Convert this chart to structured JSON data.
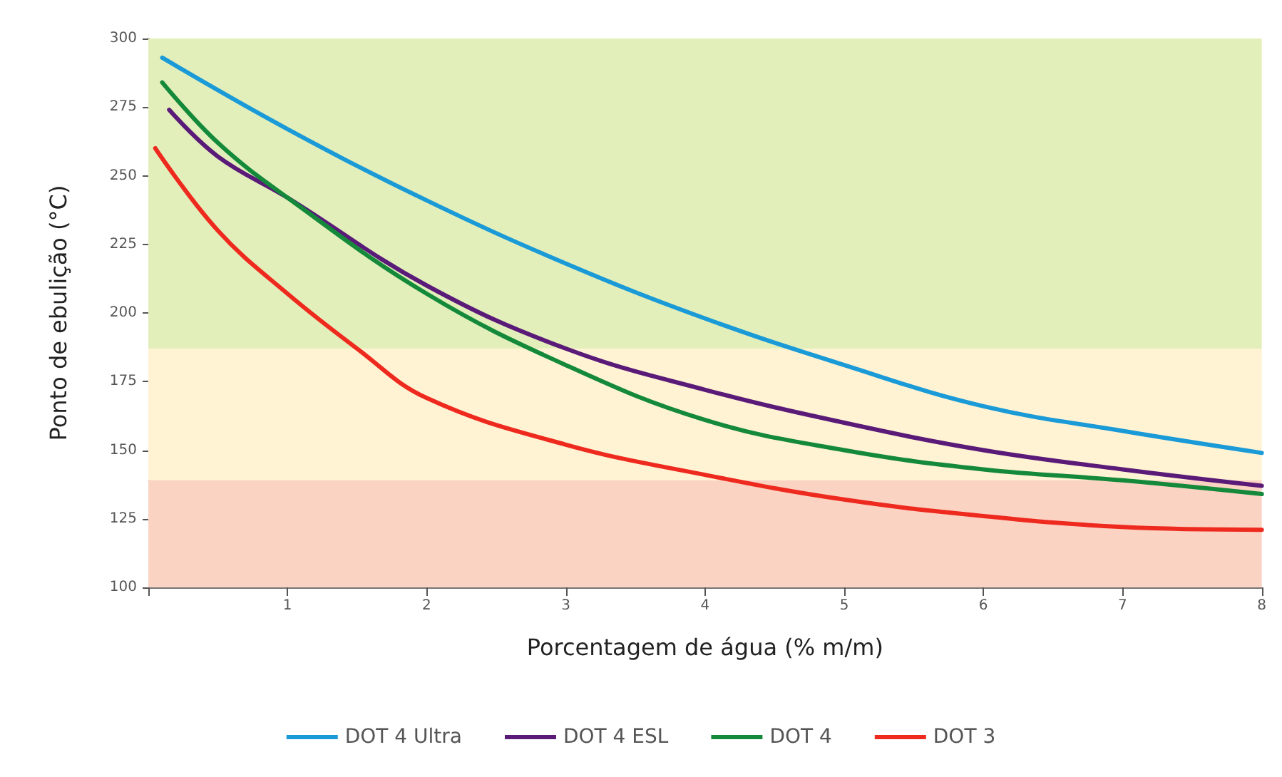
{
  "chart_data": {
    "type": "line",
    "xlabel": "Porcentagem de água (% m/m)",
    "ylabel": "Ponto de ebulição (°C)",
    "xlim": [
      0,
      8
    ],
    "xticks": [
      {
        "value": 0,
        "label": null
      },
      1,
      2,
      3,
      4,
      5,
      6,
      7,
      8
    ],
    "ylim": [
      100,
      300
    ],
    "yticks": [
      100,
      125,
      150,
      175,
      200,
      225,
      250,
      275,
      300
    ],
    "grid": false,
    "legend": "bottom",
    "marker": "none",
    "line_style": "solid",
    "bands": [
      {
        "axis": "y",
        "from": 187,
        "to": 300,
        "color": "#e3efbb"
      },
      {
        "axis": "y",
        "from": 139,
        "to": 187,
        "color": "#fff3d4"
      },
      {
        "axis": "y",
        "from": 100,
        "to": 139,
        "color": "#fbd3c3"
      }
    ],
    "series": [
      {
        "name": "DOT 4 Ultra",
        "color": "#1a9ad6",
        "x": [
          0.1,
          1,
          2,
          3,
          4,
          5,
          6,
          7,
          8
        ],
        "values": [
          293,
          267,
          241,
          218,
          198,
          181,
          166,
          157,
          149
        ]
      },
      {
        "name": "DOT 4 ESL",
        "color": "#5a1a78",
        "x": [
          0.15,
          0.5,
          1,
          2,
          3,
          4,
          5,
          6,
          7,
          8
        ],
        "values": [
          274,
          257,
          242,
          210,
          187,
          172,
          160,
          150,
          143,
          137
        ]
      },
      {
        "name": "DOT 4",
        "color": "#14893a",
        "x": [
          0.1,
          0.5,
          1,
          2,
          3,
          4,
          5,
          6,
          7,
          8
        ],
        "values": [
          284,
          262,
          242,
          207,
          181,
          161,
          150,
          143,
          139,
          134
        ]
      },
      {
        "name": "DOT 3",
        "color": "#ee2a1f",
        "x": [
          0.05,
          0.5,
          1,
          1.5,
          2,
          3,
          4,
          5,
          6,
          7,
          8
        ],
        "values": [
          260,
          230,
          207,
          187,
          169,
          152,
          141,
          132,
          126,
          122,
          121
        ]
      }
    ]
  }
}
